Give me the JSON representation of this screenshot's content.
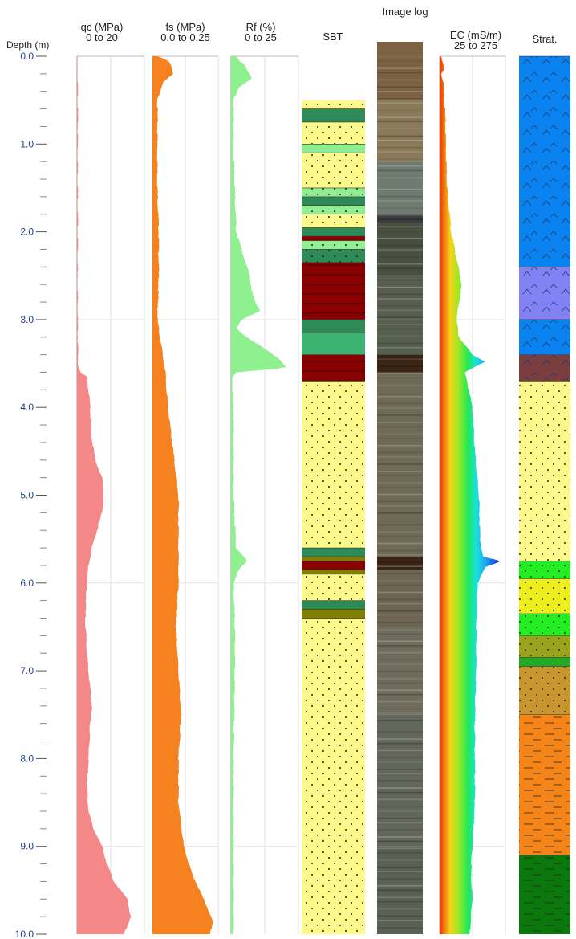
{
  "chart_data": {
    "type": "area",
    "title": "",
    "depth_axis": {
      "label": "Depth (m)",
      "range": [
        0.0,
        10.0
      ],
      "ticks": [
        "0.0",
        "1.0",
        "2.0",
        "3.0",
        "4.0",
        "5.0",
        "6.0",
        "7.0",
        "8.0",
        "9.0",
        "10.0"
      ],
      "minor_step": 0.2
    },
    "tracks": [
      {
        "key": "qc",
        "label": "qc (MPa)",
        "range_label": "0 to 20",
        "xlim": [
          0,
          20
        ],
        "color": "#f48787",
        "type": "area",
        "profile": [
          [
            0.0,
            0.1
          ],
          [
            0.2,
            0.2
          ],
          [
            0.5,
            0.3
          ],
          [
            1.0,
            0.3
          ],
          [
            1.5,
            0.3
          ],
          [
            2.0,
            0.3
          ],
          [
            2.5,
            0.2
          ],
          [
            3.0,
            0.3
          ],
          [
            3.5,
            0.4
          ],
          [
            3.6,
            1.0
          ],
          [
            3.65,
            3.0
          ],
          [
            3.8,
            3.5
          ],
          [
            4.0,
            4.0
          ],
          [
            4.3,
            4.3
          ],
          [
            4.6,
            5.5
          ],
          [
            4.8,
            7.5
          ],
          [
            5.0,
            8.0
          ],
          [
            5.2,
            7.5
          ],
          [
            5.4,
            6.0
          ],
          [
            5.6,
            4.5
          ],
          [
            5.8,
            3.5
          ],
          [
            6.0,
            3.0
          ],
          [
            6.4,
            2.5
          ],
          [
            6.8,
            3.0
          ],
          [
            7.2,
            4.0
          ],
          [
            7.4,
            4.5
          ],
          [
            7.6,
            4.0
          ],
          [
            8.0,
            3.5
          ],
          [
            8.3,
            3.0
          ],
          [
            8.6,
            3.5
          ],
          [
            8.8,
            5.0
          ],
          [
            9.0,
            7.5
          ],
          [
            9.2,
            9.0
          ],
          [
            9.4,
            11.0
          ],
          [
            9.6,
            15.0
          ],
          [
            9.8,
            16.0
          ],
          [
            10.0,
            14.0
          ]
        ]
      },
      {
        "key": "fs",
        "label": "fs (MPa)",
        "range_label": "0.0 to 0.25",
        "xlim": [
          0,
          0.25
        ],
        "color": "#f5821f",
        "type": "area",
        "profile": [
          [
            0.0,
            0.02
          ],
          [
            0.05,
            0.06
          ],
          [
            0.1,
            0.07
          ],
          [
            0.2,
            0.08
          ],
          [
            0.3,
            0.04
          ],
          [
            0.5,
            0.02
          ],
          [
            1.0,
            0.02
          ],
          [
            1.5,
            0.02
          ],
          [
            2.0,
            0.025
          ],
          [
            2.5,
            0.025
          ],
          [
            3.0,
            0.02
          ],
          [
            3.3,
            0.035
          ],
          [
            3.6,
            0.05
          ],
          [
            4.0,
            0.06
          ],
          [
            4.5,
            0.08
          ],
          [
            5.0,
            0.1
          ],
          [
            5.5,
            0.1
          ],
          [
            6.0,
            0.1
          ],
          [
            6.5,
            0.09
          ],
          [
            7.0,
            0.1
          ],
          [
            7.5,
            0.11
          ],
          [
            8.0,
            0.1
          ],
          [
            8.5,
            0.1
          ],
          [
            9.0,
            0.12
          ],
          [
            9.3,
            0.15
          ],
          [
            9.5,
            0.18
          ],
          [
            9.7,
            0.21
          ],
          [
            9.85,
            0.23
          ],
          [
            10.0,
            0.22
          ]
        ]
      },
      {
        "key": "rf",
        "label": "Rf (%)",
        "range_label": "0 to 25",
        "xlim": [
          0,
          25
        ],
        "color": "#8ef08e",
        "type": "area",
        "profile": [
          [
            0.0,
            2
          ],
          [
            0.05,
            3
          ],
          [
            0.1,
            5
          ],
          [
            0.25,
            8
          ],
          [
            0.35,
            3
          ],
          [
            0.5,
            1
          ],
          [
            1.0,
            1
          ],
          [
            1.5,
            1.5
          ],
          [
            2.0,
            2
          ],
          [
            2.3,
            5
          ],
          [
            2.5,
            7
          ],
          [
            2.7,
            8
          ],
          [
            2.8,
            9
          ],
          [
            2.9,
            11
          ],
          [
            3.0,
            4
          ],
          [
            3.1,
            2
          ],
          [
            3.2,
            6
          ],
          [
            3.3,
            11
          ],
          [
            3.45,
            18
          ],
          [
            3.55,
            21
          ],
          [
            3.6,
            2
          ],
          [
            3.65,
            0.5
          ],
          [
            4.0,
            1
          ],
          [
            5.0,
            1
          ],
          [
            5.6,
            2
          ],
          [
            5.75,
            6
          ],
          [
            5.85,
            3
          ],
          [
            6.0,
            1
          ],
          [
            6.5,
            1.5
          ],
          [
            7.0,
            1.5
          ],
          [
            8.0,
            1
          ],
          [
            9.0,
            1
          ],
          [
            10.0,
            1
          ]
        ]
      },
      {
        "key": "ec",
        "label": "EC (mS/m)",
        "range_label": "25 to 275",
        "xlim": [
          25,
          275
        ],
        "type": "area",
        "profile": [
          [
            0.0,
            30
          ],
          [
            0.15,
            45
          ],
          [
            0.2,
            32
          ],
          [
            0.3,
            40
          ],
          [
            0.5,
            45
          ],
          [
            1.0,
            50
          ],
          [
            1.5,
            55
          ],
          [
            2.0,
            70
          ],
          [
            2.3,
            90
          ],
          [
            2.6,
            110
          ],
          [
            2.9,
            95
          ],
          [
            3.0,
            90
          ],
          [
            3.2,
            100
          ],
          [
            3.4,
            150
          ],
          [
            3.48,
            200
          ],
          [
            3.6,
            120
          ],
          [
            3.7,
            130
          ],
          [
            4.0,
            150
          ],
          [
            4.5,
            160
          ],
          [
            5.0,
            175
          ],
          [
            5.5,
            180
          ],
          [
            5.7,
            190
          ],
          [
            5.75,
            260
          ],
          [
            5.82,
            200
          ],
          [
            6.0,
            170
          ],
          [
            6.5,
            165
          ],
          [
            7.0,
            165
          ],
          [
            7.5,
            160
          ],
          [
            8.0,
            160
          ],
          [
            8.5,
            160
          ],
          [
            9.0,
            150
          ],
          [
            9.3,
            145
          ],
          [
            9.6,
            150
          ],
          [
            10.0,
            140
          ]
        ]
      }
    ],
    "sbt": {
      "label": "SBT",
      "layers": [
        {
          "top": 0.5,
          "bottom": 0.6,
          "color": "#fdfa8b",
          "pattern": "dots"
        },
        {
          "top": 0.6,
          "bottom": 0.75,
          "color": "#2e8b57",
          "pattern": "none"
        },
        {
          "top": 0.75,
          "bottom": 1.0,
          "color": "#fdfa8b",
          "pattern": "dots"
        },
        {
          "top": 1.0,
          "bottom": 1.1,
          "color": "#90ee90",
          "pattern": "none"
        },
        {
          "top": 1.1,
          "bottom": 1.5,
          "color": "#fdfa8b",
          "pattern": "dots"
        },
        {
          "top": 1.5,
          "bottom": 1.6,
          "color": "#90ee90",
          "pattern": "dots"
        },
        {
          "top": 1.6,
          "bottom": 1.7,
          "color": "#2e8b57",
          "pattern": "none"
        },
        {
          "top": 1.7,
          "bottom": 1.8,
          "color": "#90ee90",
          "pattern": "dots"
        },
        {
          "top": 1.8,
          "bottom": 1.95,
          "color": "#fdfa8b",
          "pattern": "dots"
        },
        {
          "top": 1.95,
          "bottom": 2.05,
          "color": "#2e8b57",
          "pattern": "none"
        },
        {
          "top": 2.05,
          "bottom": 2.1,
          "color": "#8b0000",
          "pattern": "none"
        },
        {
          "top": 2.1,
          "bottom": 2.2,
          "color": "#90ee90",
          "pattern": "dots"
        },
        {
          "top": 2.2,
          "bottom": 2.35,
          "color": "#2e8b57",
          "pattern": "dots"
        },
        {
          "top": 2.35,
          "bottom": 3.0,
          "color": "#8b0000",
          "pattern": "lines"
        },
        {
          "top": 3.0,
          "bottom": 3.15,
          "color": "#2e8b57",
          "pattern": "none"
        },
        {
          "top": 3.15,
          "bottom": 3.4,
          "color": "#3cb371",
          "pattern": "none"
        },
        {
          "top": 3.4,
          "bottom": 3.7,
          "color": "#8b0000",
          "pattern": "lines"
        },
        {
          "top": 3.7,
          "bottom": 5.6,
          "color": "#fdfa8b",
          "pattern": "dots"
        },
        {
          "top": 5.6,
          "bottom": 5.7,
          "color": "#2e8b57",
          "pattern": "none"
        },
        {
          "top": 5.7,
          "bottom": 5.75,
          "color": "#808000",
          "pattern": "none"
        },
        {
          "top": 5.75,
          "bottom": 5.85,
          "color": "#8b0000",
          "pattern": "none"
        },
        {
          "top": 5.85,
          "bottom": 5.9,
          "color": "#808000",
          "pattern": "none"
        },
        {
          "top": 5.9,
          "bottom": 6.2,
          "color": "#fdfa8b",
          "pattern": "dots"
        },
        {
          "top": 6.2,
          "bottom": 6.3,
          "color": "#2e8b57",
          "pattern": "none"
        },
        {
          "top": 6.3,
          "bottom": 6.4,
          "color": "#808000",
          "pattern": "none"
        },
        {
          "top": 6.4,
          "bottom": 10.0,
          "color": "#fdfa8b",
          "pattern": "dots"
        }
      ]
    },
    "image_log": {
      "label": "Image log",
      "bands": [
        {
          "top": 0.0,
          "bottom": 0.5,
          "color": "#7a6243"
        },
        {
          "top": 0.5,
          "bottom": 1.2,
          "color": "#8a7a5a"
        },
        {
          "top": 1.2,
          "bottom": 1.8,
          "color": "#6f7a70"
        },
        {
          "top": 1.8,
          "bottom": 1.9,
          "color": "#3d3d3d"
        },
        {
          "top": 1.9,
          "bottom": 2.5,
          "color": "#4a5040"
        },
        {
          "top": 2.5,
          "bottom": 3.0,
          "color": "#5a5e50"
        },
        {
          "top": 3.0,
          "bottom": 3.4,
          "color": "#55604e"
        },
        {
          "top": 3.4,
          "bottom": 3.6,
          "color": "#3a2515"
        },
        {
          "top": 3.6,
          "bottom": 5.7,
          "color": "#6f6a55"
        },
        {
          "top": 5.7,
          "bottom": 5.85,
          "color": "#3a2515"
        },
        {
          "top": 5.85,
          "bottom": 6.5,
          "color": "#6b6552"
        },
        {
          "top": 6.5,
          "bottom": 7.5,
          "color": "#6e6c5b"
        },
        {
          "top": 7.5,
          "bottom": 9.0,
          "color": "#63665a"
        },
        {
          "top": 9.0,
          "bottom": 10.0,
          "color": "#5a6054"
        }
      ]
    },
    "strat": {
      "label": "Strat.",
      "layers": [
        {
          "top": 0.0,
          "bottom": 2.4,
          "color": "#0a82f0",
          "pattern": "chevrons"
        },
        {
          "top": 2.4,
          "bottom": 3.0,
          "color": "#8282f5",
          "pattern": "chevrons"
        },
        {
          "top": 3.0,
          "bottom": 3.4,
          "color": "#0a82f0",
          "pattern": "chevrons"
        },
        {
          "top": 3.4,
          "bottom": 3.7,
          "color": "#7a3e3e",
          "pattern": "chevrons"
        },
        {
          "top": 3.7,
          "bottom": 5.75,
          "color": "#fdfa8b",
          "pattern": "dots"
        },
        {
          "top": 5.75,
          "bottom": 5.95,
          "color": "#22ee22",
          "pattern": "dots"
        },
        {
          "top": 5.95,
          "bottom": 6.35,
          "color": "#eded1c",
          "pattern": "dots"
        },
        {
          "top": 6.35,
          "bottom": 6.6,
          "color": "#22ee22",
          "pattern": "dots"
        },
        {
          "top": 6.6,
          "bottom": 6.85,
          "color": "#9aa31c",
          "pattern": "dots"
        },
        {
          "top": 6.85,
          "bottom": 6.95,
          "color": "#22aa22",
          "pattern": "none"
        },
        {
          "top": 6.95,
          "bottom": 7.5,
          "color": "#c8952e",
          "pattern": "dots"
        },
        {
          "top": 7.5,
          "bottom": 9.1,
          "color": "#f58518",
          "pattern": "dashes"
        },
        {
          "top": 9.1,
          "bottom": 10.0,
          "color": "#0b780b",
          "pattern": "dashes"
        }
      ]
    }
  }
}
